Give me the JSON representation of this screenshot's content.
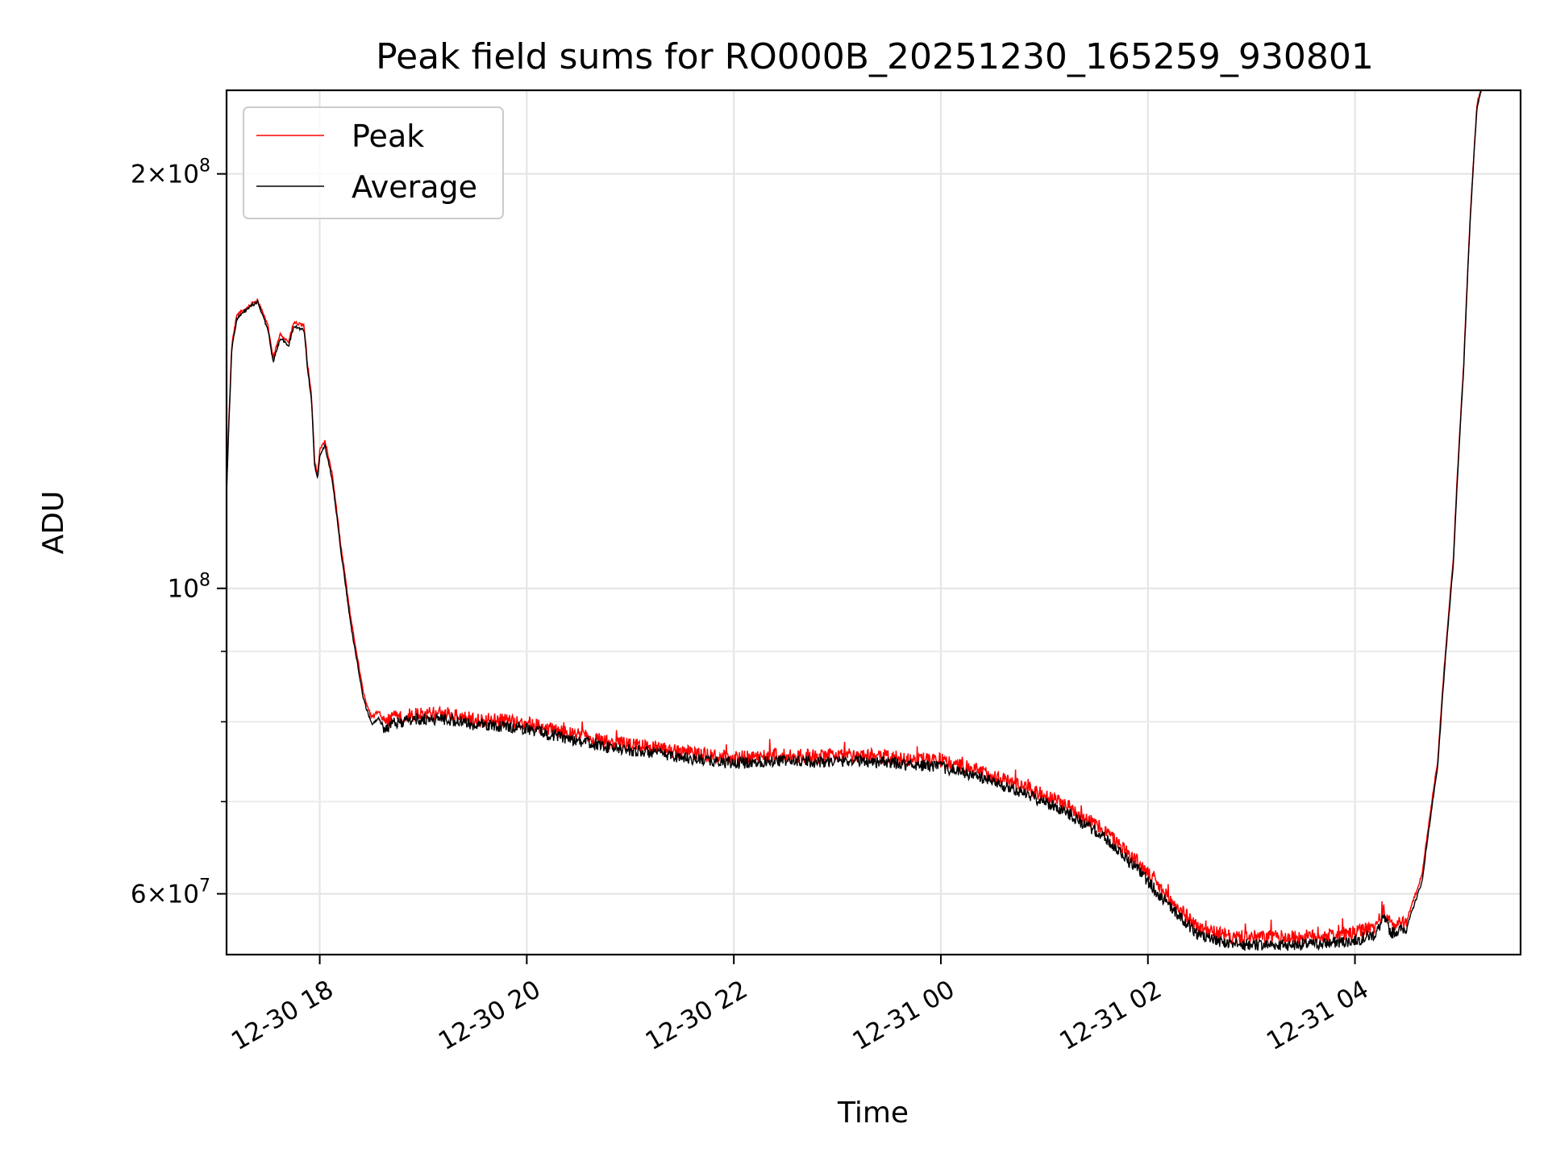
{
  "chart_data": {
    "type": "line",
    "title": "Peak field sums for RO000B_20251230_165259_930801",
    "xlabel": "Time",
    "ylabel": "ADU",
    "yscale": "log",
    "grid": true,
    "legend_position": "upper-left",
    "xlim": [
      -0.9,
      11.6
    ],
    "ylim": [
      54200000,
      230000000
    ],
    "x_ticks": [
      {
        "value": 0,
        "label": "12-30 18"
      },
      {
        "value": 2,
        "label": "12-30 20"
      },
      {
        "value": 4,
        "label": "12-30 22"
      },
      {
        "value": 6,
        "label": "12-31 00"
      },
      {
        "value": 8,
        "label": "12-31 02"
      },
      {
        "value": 10,
        "label": "12-31 04"
      }
    ],
    "y_major_ticks": [
      {
        "value": 60000000,
        "mantissa": "6",
        "exponent": "7"
      },
      {
        "value": 100000000,
        "mantissa": "",
        "exponent": "8"
      },
      {
        "value": 200000000,
        "mantissa": "2",
        "exponent": "8"
      }
    ],
    "y_minor_ticks": [
      70000000,
      80000000,
      90000000
    ],
    "x_unit": "hours after 12-30 18:00",
    "series": [
      {
        "name": "Peak",
        "color": "#ff0000",
        "noise_amplitude": 0.012,
        "points": [
          [
            -0.9,
            118000000
          ],
          [
            -0.85,
            150000000
          ],
          [
            -0.8,
            158000000
          ],
          [
            -0.7,
            160000000
          ],
          [
            -0.6,
            162000000
          ],
          [
            -0.5,
            155000000
          ],
          [
            -0.45,
            147000000
          ],
          [
            -0.38,
            153000000
          ],
          [
            -0.3,
            151000000
          ],
          [
            -0.25,
            156000000
          ],
          [
            -0.15,
            155000000
          ],
          [
            -0.12,
            146000000
          ],
          [
            -0.08,
            138000000
          ],
          [
            -0.05,
            124000000
          ],
          [
            -0.02,
            121000000
          ],
          [
            0.0,
            126000000
          ],
          [
            0.05,
            128000000
          ],
          [
            0.12,
            121000000
          ],
          [
            0.2,
            108000000
          ],
          [
            0.3,
            95000000
          ],
          [
            0.42,
            84000000
          ],
          [
            0.5,
            80500000
          ],
          [
            0.57,
            81500000
          ],
          [
            0.62,
            79800000
          ],
          [
            0.7,
            80500000
          ],
          [
            0.9,
            81000000
          ],
          [
            1.2,
            81100000
          ],
          [
            1.5,
            80300000
          ],
          [
            1.8,
            80100000
          ],
          [
            2.0,
            79800000
          ],
          [
            2.4,
            78500000
          ],
          [
            2.8,
            77300000
          ],
          [
            3.2,
            76700000
          ],
          [
            3.6,
            75900000
          ],
          [
            4.0,
            75300000
          ],
          [
            4.4,
            75700000
          ],
          [
            4.8,
            75500000
          ],
          [
            5.2,
            75700000
          ],
          [
            5.6,
            75300000
          ],
          [
            6.0,
            75000000
          ],
          [
            6.4,
            73600000
          ],
          [
            6.8,
            71800000
          ],
          [
            7.2,
            69700000
          ],
          [
            7.6,
            66500000
          ],
          [
            7.9,
            63300000
          ],
          [
            8.2,
            59500000
          ],
          [
            8.5,
            56600000
          ],
          [
            8.8,
            55800000
          ],
          [
            9.1,
            55800000
          ],
          [
            9.4,
            55800000
          ],
          [
            9.7,
            55900000
          ],
          [
            10.0,
            56200000
          ],
          [
            10.2,
            56800000
          ],
          [
            10.28,
            58300000
          ],
          [
            10.35,
            56900000
          ],
          [
            10.5,
            57400000
          ],
          [
            10.65,
            62000000
          ],
          [
            10.8,
            75000000
          ],
          [
            10.95,
            105000000
          ],
          [
            11.05,
            145000000
          ],
          [
            11.12,
            190000000
          ],
          [
            11.18,
            225000000
          ],
          [
            11.25,
            235000000
          ]
        ]
      },
      {
        "name": "Average",
        "color": "#000000",
        "noise_amplitude": 0.01,
        "points": [
          [
            -0.9,
            117000000
          ],
          [
            -0.85,
            149000000
          ],
          [
            -0.8,
            157000000
          ],
          [
            -0.7,
            159500000
          ],
          [
            -0.6,
            161500000
          ],
          [
            -0.5,
            154000000
          ],
          [
            -0.45,
            146000000
          ],
          [
            -0.38,
            152000000
          ],
          [
            -0.3,
            150000000
          ],
          [
            -0.25,
            155000000
          ],
          [
            -0.15,
            154000000
          ],
          [
            -0.12,
            145000000
          ],
          [
            -0.08,
            137000000
          ],
          [
            -0.05,
            123000000
          ],
          [
            -0.02,
            120000000
          ],
          [
            0.0,
            125000000
          ],
          [
            0.05,
            127000000
          ],
          [
            0.12,
            120000000
          ],
          [
            0.2,
            107000000
          ],
          [
            0.3,
            94000000
          ],
          [
            0.42,
            83200000
          ],
          [
            0.5,
            79700000
          ],
          [
            0.57,
            80500000
          ],
          [
            0.62,
            79000000
          ],
          [
            0.7,
            79700000
          ],
          [
            0.9,
            80300000
          ],
          [
            1.2,
            80400000
          ],
          [
            1.5,
            79600000
          ],
          [
            1.8,
            79400000
          ],
          [
            2.0,
            79100000
          ],
          [
            2.4,
            77800000
          ],
          [
            2.8,
            76600000
          ],
          [
            3.2,
            76000000
          ],
          [
            3.6,
            75200000
          ],
          [
            4.0,
            74600000
          ],
          [
            4.4,
            75000000
          ],
          [
            4.8,
            74800000
          ],
          [
            5.2,
            75000000
          ],
          [
            5.6,
            74600000
          ],
          [
            6.0,
            74200000
          ],
          [
            6.4,
            72800000
          ],
          [
            6.8,
            71000000
          ],
          [
            7.2,
            68900000
          ],
          [
            7.6,
            65700000
          ],
          [
            7.9,
            62500000
          ],
          [
            8.2,
            58800000
          ],
          [
            8.5,
            55900000
          ],
          [
            8.8,
            55100000
          ],
          [
            9.1,
            55100000
          ],
          [
            9.4,
            55100000
          ],
          [
            9.7,
            55200000
          ],
          [
            10.0,
            55500000
          ],
          [
            10.2,
            56100000
          ],
          [
            10.28,
            57600000
          ],
          [
            10.35,
            56200000
          ],
          [
            10.5,
            56700000
          ],
          [
            10.65,
            61300000
          ],
          [
            10.8,
            74200000
          ],
          [
            10.95,
            104000000
          ],
          [
            11.05,
            144000000
          ],
          [
            11.12,
            189000000
          ],
          [
            11.18,
            224000000
          ],
          [
            11.25,
            235000000
          ]
        ]
      }
    ]
  }
}
